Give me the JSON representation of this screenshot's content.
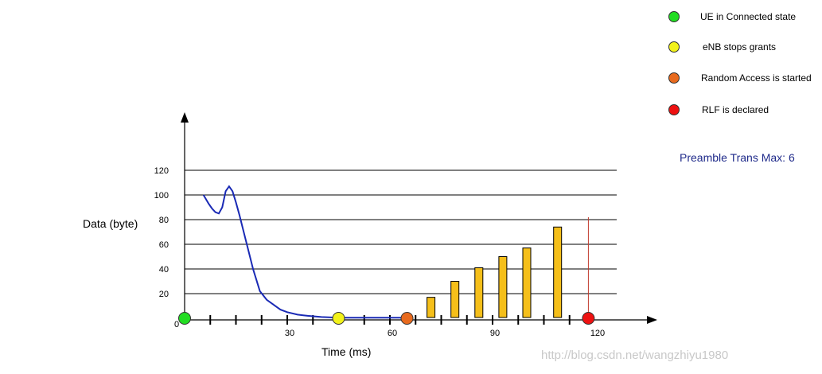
{
  "legend": [
    {
      "label": "UE in Connected state",
      "color": "#22dd22"
    },
    {
      "label": "eNB stops grants",
      "color": "#f2f21a"
    },
    {
      "label": "Random Access is started",
      "color": "#e86a1e"
    },
    {
      "label": "RLF is declared",
      "color": "#ee1111"
    }
  ],
  "note": "Preamble Trans Max: 6",
  "watermark": "http://blog.csdn.net/wangzhiyu1980",
  "chart_data": {
    "type": "line",
    "xlabel": "Time (ms)",
    "ylabel": "Data (byte)",
    "xlim": [
      0,
      120
    ],
    "ylim": [
      0,
      120
    ],
    "x_ticks": [
      30,
      60,
      90,
      120
    ],
    "y_ticks": [
      20,
      40,
      60,
      80,
      100,
      120
    ],
    "origin_label": "0",
    "grid": "horizontal",
    "series": [
      {
        "type": "line",
        "color": "#1a2ab5",
        "x": [
          5.5,
          7,
          8,
          9,
          10,
          11,
          12,
          13,
          14,
          15,
          16,
          17,
          18,
          19,
          20,
          21,
          22,
          24,
          26,
          28,
          30,
          33,
          36,
          40,
          45,
          50,
          55,
          60,
          65
        ],
        "y": [
          100,
          93,
          89,
          86,
          85,
          90,
          103,
          107,
          103,
          94,
          84,
          73,
          62,
          51,
          40,
          31,
          22,
          15,
          11,
          7,
          5,
          3,
          2,
          1,
          0.5,
          0.5,
          0.5,
          0.5,
          0.5
        ]
      },
      {
        "type": "bar",
        "color": "#f5bf1a",
        "x": [
          72,
          79,
          86,
          93,
          100,
          109
        ],
        "y": [
          17,
          30,
          41,
          50,
          57,
          74
        ]
      }
    ],
    "event_markers": [
      {
        "x": 0,
        "y": 0,
        "color": "#22dd22"
      },
      {
        "x": 45,
        "y": 0,
        "color": "#f2f21a"
      },
      {
        "x": 65,
        "y": 0,
        "color": "#e86a1e"
      },
      {
        "x": 118,
        "y": 0,
        "color": "#ee1111"
      }
    ],
    "vline": {
      "x": 118,
      "from": 0,
      "to": 82,
      "color": "#c0392b"
    }
  }
}
